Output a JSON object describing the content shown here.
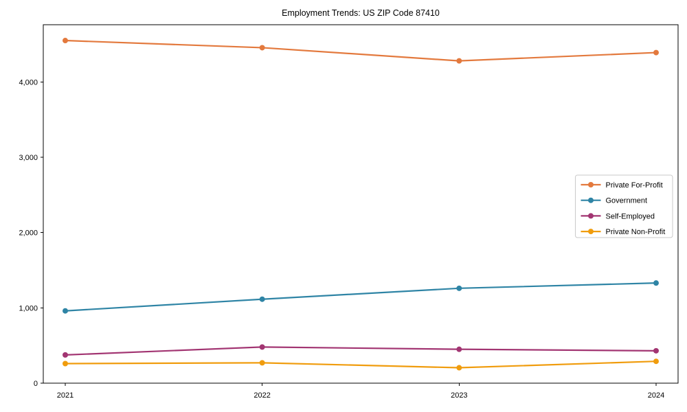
{
  "chart": {
    "title": "Employment Trends: US ZIP Code 87410"
  },
  "chart_data": {
    "type": "line",
    "title": "Employment Trends: US ZIP Code 87410",
    "categories": [
      "2021",
      "2022",
      "2023",
      "2024"
    ],
    "series": [
      {
        "name": "Private For-Profit",
        "color": "#e3793d",
        "values": [
          4550,
          4455,
          4280,
          4390
        ]
      },
      {
        "name": "Government",
        "color": "#2e84a5",
        "values": [
          960,
          1115,
          1260,
          1330
        ]
      },
      {
        "name": "Self-Employed",
        "color": "#a23572",
        "values": [
          375,
          480,
          450,
          430
        ]
      },
      {
        "name": "Private Non-Profit",
        "color": "#f09c0d",
        "values": [
          260,
          270,
          205,
          290
        ]
      }
    ],
    "xlabel": "",
    "ylabel": "",
    "ylim": [
      0,
      4760
    ],
    "yticks": [
      0,
      1000,
      2000,
      3000,
      4000
    ],
    "ytick_labels": [
      "0",
      "1,000",
      "2,000",
      "3,000",
      "4,000"
    ],
    "grid": false,
    "legend_position": "right-middle",
    "marker": "circle",
    "axis_color": "#000000",
    "legend_border_color": "#c9c9c9",
    "legend_background": "#ffffff"
  }
}
